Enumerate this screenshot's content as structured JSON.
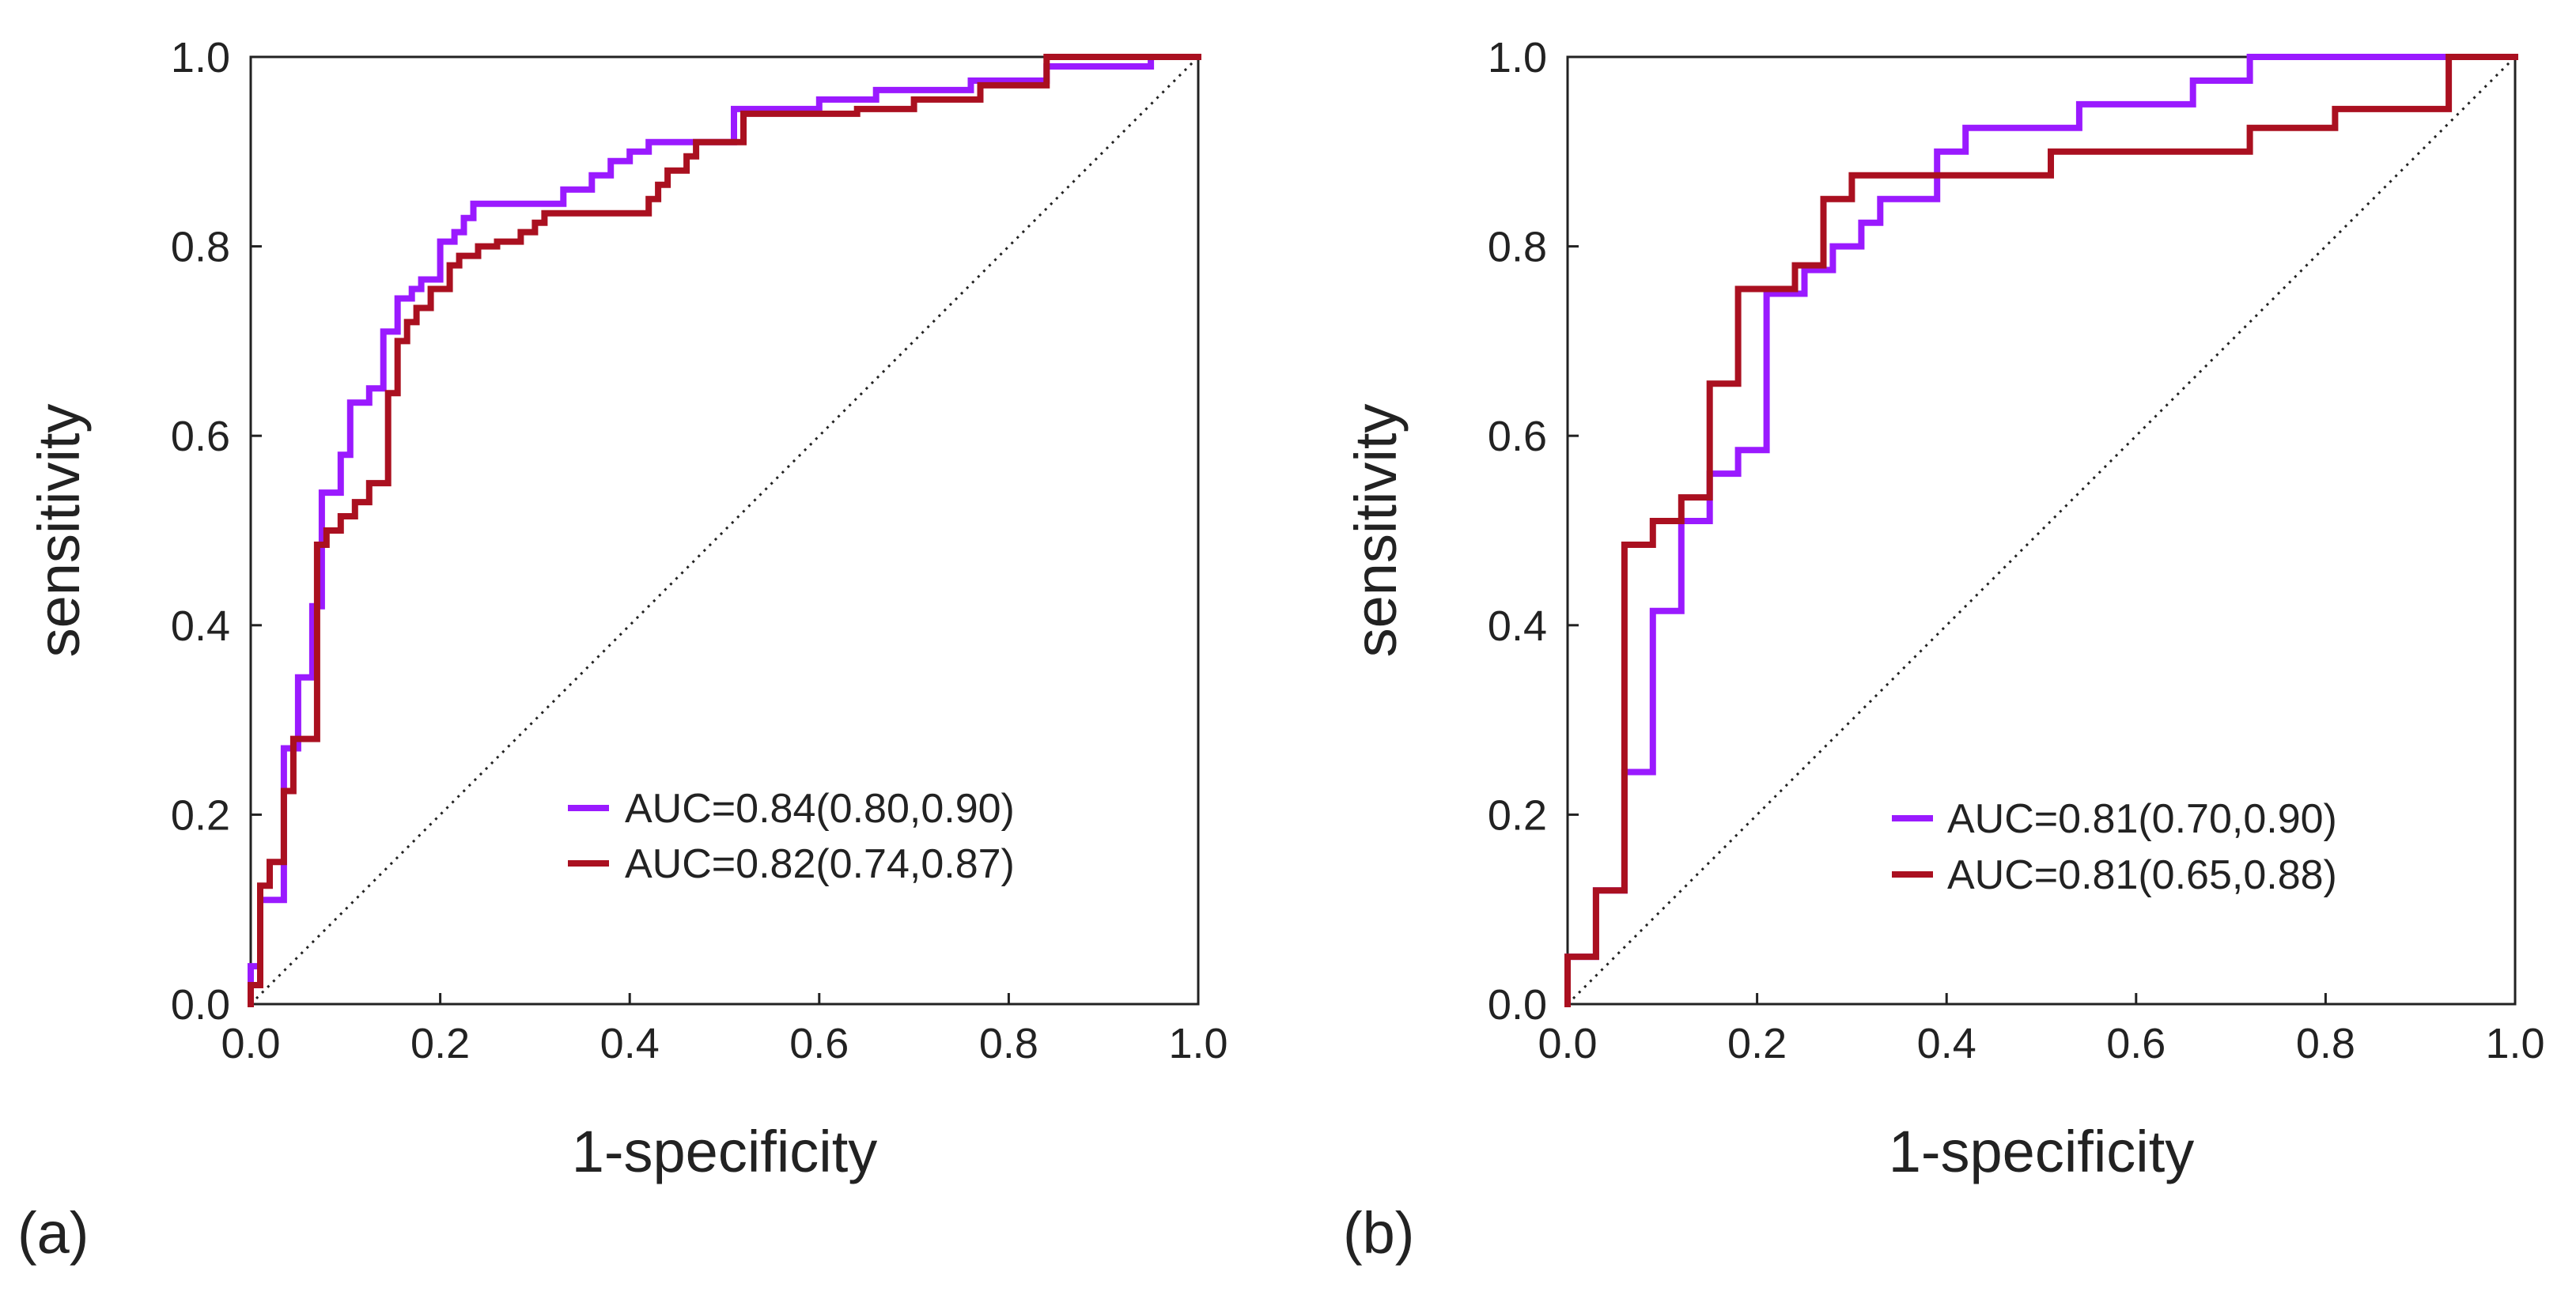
{
  "chart_data": [
    {
      "type": "line",
      "panel_label": "(a)",
      "xlabel": "1-specificity",
      "ylabel": "sensitivity",
      "xlim": [
        0,
        1
      ],
      "ylim": [
        0,
        1
      ],
      "x_ticks": [
        "0.0",
        "0.2",
        "0.4",
        "0.6",
        "0.8",
        "1.0"
      ],
      "y_ticks": [
        "0.0",
        "0.2",
        "0.4",
        "0.6",
        "0.8",
        "1.0"
      ],
      "grid": false,
      "legend_position": "lower-right",
      "diagonal_reference": true,
      "series": [
        {
          "name": "AUC=0.84(0.80,0.90)",
          "color": "#9a1aff",
          "points": [
            [
              0,
              0
            ],
            [
              0,
              0.04
            ],
            [
              0.01,
              0.04
            ],
            [
              0.01,
              0.11
            ],
            [
              0.035,
              0.11
            ],
            [
              0.035,
              0.27
            ],
            [
              0.05,
              0.27
            ],
            [
              0.05,
              0.345
            ],
            [
              0.065,
              0.345
            ],
            [
              0.065,
              0.42
            ],
            [
              0.075,
              0.42
            ],
            [
              0.075,
              0.54
            ],
            [
              0.095,
              0.54
            ],
            [
              0.095,
              0.58
            ],
            [
              0.105,
              0.58
            ],
            [
              0.105,
              0.635
            ],
            [
              0.125,
              0.635
            ],
            [
              0.125,
              0.65
            ],
            [
              0.14,
              0.65
            ],
            [
              0.14,
              0.71
            ],
            [
              0.155,
              0.71
            ],
            [
              0.155,
              0.745
            ],
            [
              0.17,
              0.745
            ],
            [
              0.17,
              0.755
            ],
            [
              0.18,
              0.755
            ],
            [
              0.18,
              0.765
            ],
            [
              0.2,
              0.765
            ],
            [
              0.2,
              0.805
            ],
            [
              0.215,
              0.805
            ],
            [
              0.215,
              0.815
            ],
            [
              0.225,
              0.815
            ],
            [
              0.225,
              0.83
            ],
            [
              0.235,
              0.83
            ],
            [
              0.235,
              0.845
            ],
            [
              0.33,
              0.845
            ],
            [
              0.33,
              0.86
            ],
            [
              0.36,
              0.86
            ],
            [
              0.36,
              0.875
            ],
            [
              0.38,
              0.875
            ],
            [
              0.38,
              0.89
            ],
            [
              0.4,
              0.89
            ],
            [
              0.4,
              0.9
            ],
            [
              0.42,
              0.9
            ],
            [
              0.42,
              0.91
            ],
            [
              0.51,
              0.91
            ],
            [
              0.51,
              0.945
            ],
            [
              0.6,
              0.945
            ],
            [
              0.6,
              0.955
            ],
            [
              0.66,
              0.955
            ],
            [
              0.66,
              0.965
            ],
            [
              0.76,
              0.965
            ],
            [
              0.76,
              0.975
            ],
            [
              0.84,
              0.975
            ],
            [
              0.84,
              0.99
            ],
            [
              0.95,
              0.99
            ],
            [
              0.95,
              1
            ],
            [
              1,
              1
            ]
          ]
        },
        {
          "name": "AUC=0.82(0.74,0.87)",
          "color": "#aa1020",
          "points": [
            [
              0,
              0
            ],
            [
              0,
              0.02
            ],
            [
              0.01,
              0.02
            ],
            [
              0.01,
              0.125
            ],
            [
              0.02,
              0.125
            ],
            [
              0.02,
              0.15
            ],
            [
              0.035,
              0.15
            ],
            [
              0.035,
              0.225
            ],
            [
              0.045,
              0.225
            ],
            [
              0.045,
              0.28
            ],
            [
              0.07,
              0.28
            ],
            [
              0.07,
              0.485
            ],
            [
              0.08,
              0.485
            ],
            [
              0.08,
              0.5
            ],
            [
              0.095,
              0.5
            ],
            [
              0.095,
              0.515
            ],
            [
              0.11,
              0.515
            ],
            [
              0.11,
              0.53
            ],
            [
              0.125,
              0.53
            ],
            [
              0.125,
              0.55
            ],
            [
              0.145,
              0.55
            ],
            [
              0.145,
              0.645
            ],
            [
              0.155,
              0.645
            ],
            [
              0.155,
              0.7
            ],
            [
              0.165,
              0.7
            ],
            [
              0.165,
              0.72
            ],
            [
              0.175,
              0.72
            ],
            [
              0.175,
              0.735
            ],
            [
              0.19,
              0.735
            ],
            [
              0.19,
              0.755
            ],
            [
              0.21,
              0.755
            ],
            [
              0.21,
              0.78
            ],
            [
              0.22,
              0.78
            ],
            [
              0.22,
              0.79
            ],
            [
              0.24,
              0.79
            ],
            [
              0.24,
              0.8
            ],
            [
              0.26,
              0.8
            ],
            [
              0.26,
              0.805
            ],
            [
              0.285,
              0.805
            ],
            [
              0.285,
              0.815
            ],
            [
              0.3,
              0.815
            ],
            [
              0.3,
              0.825
            ],
            [
              0.31,
              0.825
            ],
            [
              0.31,
              0.835
            ],
            [
              0.42,
              0.835
            ],
            [
              0.42,
              0.85
            ],
            [
              0.43,
              0.85
            ],
            [
              0.43,
              0.865
            ],
            [
              0.44,
              0.865
            ],
            [
              0.44,
              0.88
            ],
            [
              0.46,
              0.88
            ],
            [
              0.46,
              0.895
            ],
            [
              0.47,
              0.895
            ],
            [
              0.47,
              0.91
            ],
            [
              0.52,
              0.91
            ],
            [
              0.52,
              0.94
            ],
            [
              0.64,
              0.94
            ],
            [
              0.64,
              0.945
            ],
            [
              0.7,
              0.945
            ],
            [
              0.7,
              0.955
            ],
            [
              0.77,
              0.955
            ],
            [
              0.77,
              0.97
            ],
            [
              0.84,
              0.97
            ],
            [
              0.84,
              1
            ],
            [
              1,
              1
            ]
          ]
        }
      ]
    },
    {
      "type": "line",
      "panel_label": "(b)",
      "xlabel": "1-specificity",
      "ylabel": "sensitivity",
      "xlim": [
        0,
        1
      ],
      "ylim": [
        0,
        1
      ],
      "x_ticks": [
        "0.0",
        "0.2",
        "0.4",
        "0.6",
        "0.8",
        "1.0"
      ],
      "y_ticks": [
        "0.0",
        "0.2",
        "0.4",
        "0.6",
        "0.8",
        "1.0"
      ],
      "grid": false,
      "legend_position": "lower-right",
      "diagonal_reference": true,
      "series": [
        {
          "name": "AUC=0.81(0.70,0.90)",
          "color": "#9a1aff",
          "points": [
            [
              0,
              0
            ],
            [
              0,
              0.05
            ],
            [
              0.03,
              0.05
            ],
            [
              0.03,
              0.12
            ],
            [
              0.06,
              0.12
            ],
            [
              0.06,
              0.245
            ],
            [
              0.09,
              0.245
            ],
            [
              0.09,
              0.415
            ],
            [
              0.12,
              0.415
            ],
            [
              0.12,
              0.51
            ],
            [
              0.15,
              0.51
            ],
            [
              0.15,
              0.56
            ],
            [
              0.18,
              0.56
            ],
            [
              0.18,
              0.585
            ],
            [
              0.21,
              0.585
            ],
            [
              0.21,
              0.75
            ],
            [
              0.25,
              0.75
            ],
            [
              0.25,
              0.775
            ],
            [
              0.28,
              0.775
            ],
            [
              0.28,
              0.8
            ],
            [
              0.31,
              0.8
            ],
            [
              0.31,
              0.825
            ],
            [
              0.33,
              0.825
            ],
            [
              0.33,
              0.85
            ],
            [
              0.39,
              0.85
            ],
            [
              0.39,
              0.9
            ],
            [
              0.42,
              0.9
            ],
            [
              0.42,
              0.925
            ],
            [
              0.48,
              0.925
            ],
            [
              0.48,
              0.925
            ],
            [
              0.54,
              0.925
            ],
            [
              0.54,
              0.95
            ],
            [
              0.66,
              0.95
            ],
            [
              0.66,
              0.975
            ],
            [
              0.72,
              0.975
            ],
            [
              0.72,
              1
            ],
            [
              1,
              1
            ]
          ]
        },
        {
          "name": "AUC=0.81(0.65,0.88)",
          "color": "#aa1020",
          "points": [
            [
              0,
              0
            ],
            [
              0,
              0.05
            ],
            [
              0.03,
              0.05
            ],
            [
              0.03,
              0.12
            ],
            [
              0.06,
              0.12
            ],
            [
              0.06,
              0.485
            ],
            [
              0.09,
              0.485
            ],
            [
              0.09,
              0.51
            ],
            [
              0.12,
              0.51
            ],
            [
              0.12,
              0.535
            ],
            [
              0.15,
              0.535
            ],
            [
              0.15,
              0.655
            ],
            [
              0.18,
              0.655
            ],
            [
              0.18,
              0.755
            ],
            [
              0.24,
              0.755
            ],
            [
              0.24,
              0.78
            ],
            [
              0.27,
              0.78
            ],
            [
              0.27,
              0.85
            ],
            [
              0.3,
              0.85
            ],
            [
              0.3,
              0.875
            ],
            [
              0.45,
              0.875
            ],
            [
              0.45,
              0.875
            ],
            [
              0.51,
              0.875
            ],
            [
              0.51,
              0.9
            ],
            [
              0.66,
              0.9
            ],
            [
              0.66,
              0.9
            ],
            [
              0.72,
              0.9
            ],
            [
              0.72,
              0.925
            ],
            [
              0.81,
              0.925
            ],
            [
              0.81,
              0.945
            ],
            [
              0.93,
              0.945
            ],
            [
              0.93,
              1
            ],
            [
              1,
              1
            ]
          ]
        }
      ]
    }
  ]
}
